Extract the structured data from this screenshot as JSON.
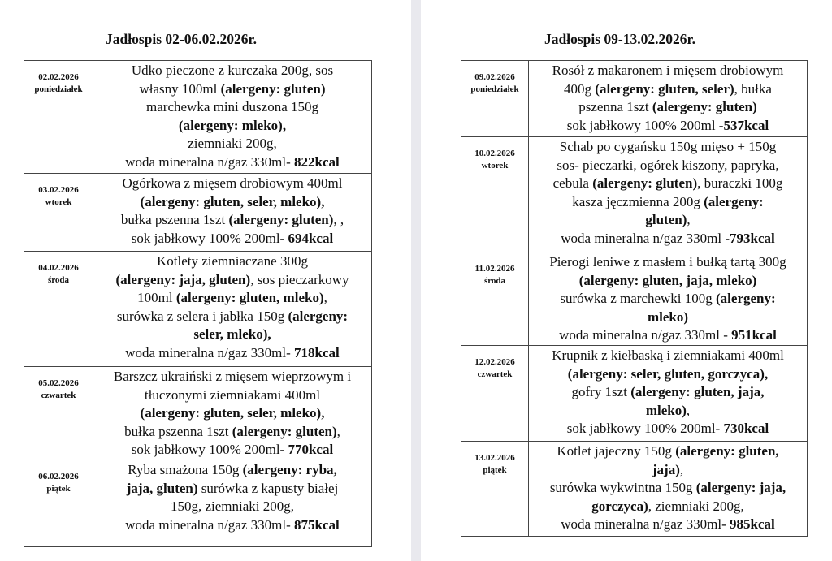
{
  "pages": [
    {
      "title": "Jadłospis 02-06.02.2026r.",
      "rows": [
        {
          "date": "02.02.2026",
          "day": "poniedziałek",
          "lines": [
            [
              {
                "t": "Udko pieczone z kurczaka 200g, sos"
              }
            ],
            [
              {
                "t": "własny  100ml "
              },
              {
                "t": "(alergeny: gluten)",
                "b": true
              }
            ],
            [
              {
                "t": "marchewka mini duszona 150g"
              }
            ],
            [
              {
                "t": "(alergeny: mleko),",
                "b": true
              }
            ],
            [
              {
                "t": "ziemniaki 200g,"
              }
            ],
            [
              {
                "t": "woda mineralna n/gaz 330ml- "
              },
              {
                "t": "822kcal",
                "b": true
              }
            ]
          ]
        },
        {
          "date": "03.02.2026",
          "day": "wtorek",
          "lines": [
            [
              {
                "t": "Ogórkowa z mięsem drobiowym 400ml"
              }
            ],
            [
              {
                "t": "(alergeny: gluten, seler, mleko),",
                "b": true
              }
            ],
            [
              {
                "t": "bułka pszenna 1szt "
              },
              {
                "t": "(alergeny: gluten)",
                "b": true
              },
              {
                "t": ", ,"
              }
            ],
            [
              {
                "t": "sok jabłkowy 100% 200ml- "
              },
              {
                "t": "694kcal",
                "b": true
              }
            ]
          ]
        },
        {
          "date": "04.02.2026",
          "day": "środa",
          "lines": [
            [
              {
                "t": "Kotlety ziemniaczane 300g"
              }
            ],
            [
              {
                "t": "(alergeny: jaja, gluten)",
                "b": true
              },
              {
                "t": ", sos pieczarkowy"
              }
            ],
            [
              {
                "t": "100ml "
              },
              {
                "t": "(alergeny: gluten, mleko)",
                "b": true
              },
              {
                "t": ","
              }
            ],
            [
              {
                "t": "surówka z selera i jabłka 150g "
              },
              {
                "t": "(alergeny:",
                "b": true
              }
            ],
            [
              {
                "t": "seler, mleko),",
                "b": true
              }
            ],
            [
              {
                "t": "woda mineralna n/gaz 330ml- "
              },
              {
                "t": "718kcal",
                "b": true
              }
            ]
          ]
        },
        {
          "date": "05.02.2026",
          "day": "czwartek",
          "lines": [
            [
              {
                "t": "Barszcz ukraiński z mięsem wieprzowym i"
              }
            ],
            [
              {
                "t": "tłuczonymi ziemniakami 400ml"
              }
            ],
            [
              {
                "t": "(alergeny: gluten, seler, mleko),",
                "b": true
              }
            ],
            [
              {
                "t": "bułka pszenna 1szt "
              },
              {
                "t": "(alergeny: gluten)",
                "b": true
              },
              {
                "t": ","
              }
            ],
            [
              {
                "t": "sok jabłkowy 100% 200ml- "
              },
              {
                "t": "770kcal",
                "b": true
              }
            ]
          ]
        },
        {
          "date": "06.02.2026",
          "day": "piątek",
          "lines": [
            [
              {
                "t": "Ryba smażona 150g "
              },
              {
                "t": "(alergeny: ryba,",
                "b": true
              }
            ],
            [
              {
                "t": "jaja, gluten)",
                "b": true
              },
              {
                "t": " surówka z kapusty białej"
              }
            ],
            [
              {
                "t": "150g, ziemniaki 200g,"
              }
            ],
            [
              {
                "t": "woda mineralna n/gaz 330ml- "
              },
              {
                "t": "875kcal",
                "b": true
              }
            ]
          ]
        }
      ]
    },
    {
      "title": "Jadłospis 09-13.02.2026r.",
      "rows": [
        {
          "date": "09.02.2026",
          "day": "poniedziałek",
          "lines": [
            [
              {
                "t": "Rosół z makaronem i mięsem drobiowym"
              }
            ],
            [
              {
                "t": "400g "
              },
              {
                "t": "(alergeny: gluten, seler)",
                "b": true
              },
              {
                "t": ", bułka"
              }
            ],
            [
              {
                "t": "pszenna 1szt "
              },
              {
                "t": "(alergeny: gluten)",
                "b": true
              }
            ],
            [
              {
                "t": "sok jabłkowy 100% 200ml -"
              },
              {
                "t": "537kcal",
                "b": true
              }
            ]
          ]
        },
        {
          "date": "10.02.2026",
          "day": "wtorek",
          "lines": [
            [
              {
                "t": "Schab po cygańsku 150g mięso + 150g"
              }
            ],
            [
              {
                "t": "sos- pieczarki, ogórek kiszony, papryka,"
              }
            ],
            [
              {
                "t": "cebula "
              },
              {
                "t": "(alergeny: gluten)",
                "b": true
              },
              {
                "t": ", buraczki 100g"
              }
            ],
            [
              {
                "t": "kasza jęczmienna 200g "
              },
              {
                "t": "(alergeny:",
                "b": true
              }
            ],
            [
              {
                "t": "gluten)",
                "b": true
              },
              {
                "t": ","
              }
            ],
            [
              {
                "t": "woda mineralna n/gaz 330ml -"
              },
              {
                "t": "793kcal",
                "b": true
              }
            ]
          ]
        },
        {
          "date": "11.02.2026",
          "day": "środa",
          "lines": [
            [
              {
                "t": "Pierogi leniwe z masłem i bułką tartą 300g"
              }
            ],
            [
              {
                "t": "(alergeny: gluten, jaja, mleko)",
                "b": true
              }
            ],
            [
              {
                "t": "surówka z marchewki 100g "
              },
              {
                "t": "(alergeny:",
                "b": true
              }
            ],
            [
              {
                "t": "mleko)",
                "b": true
              }
            ],
            [
              {
                "t": "woda mineralna n/gaz 330ml - "
              },
              {
                "t": "951kcal",
                "b": true
              }
            ]
          ]
        },
        {
          "date": "12.02.2026",
          "day": "czwartek",
          "lines": [
            [
              {
                "t": "Krupnik z kiełbaską i ziemniakami 400ml"
              }
            ],
            [
              {
                "t": "(alergeny: seler, gluten, gorczyca),",
                "b": true
              }
            ],
            [
              {
                "t": "gofry 1szt "
              },
              {
                "t": "(alergeny: gluten, jaja,",
                "b": true
              }
            ],
            [
              {
                "t": "mleko)",
                "b": true
              },
              {
                "t": ","
              }
            ],
            [
              {
                "t": "sok jabłkowy 100% 200ml- "
              },
              {
                "t": "730kcal",
                "b": true
              }
            ]
          ]
        },
        {
          "date": "13.02.2026",
          "day": "piątek",
          "lines": [
            [
              {
                "t": "Kotlet jajeczny 150g  "
              },
              {
                "t": "(alergeny: gluten,",
                "b": true
              }
            ],
            [
              {
                "t": "jaja)",
                "b": true
              },
              {
                "t": ","
              }
            ],
            [
              {
                "t": "surówka wykwintna 150g "
              },
              {
                "t": "(alergeny: jaja,",
                "b": true
              }
            ],
            [
              {
                "t": "gorczyca)",
                "b": true
              },
              {
                "t": ", ziemniaki 200g,"
              }
            ],
            [
              {
                "t": "woda mineralna n/gaz 330ml- "
              },
              {
                "t": "985kcal",
                "b": true
              }
            ]
          ]
        }
      ]
    }
  ]
}
